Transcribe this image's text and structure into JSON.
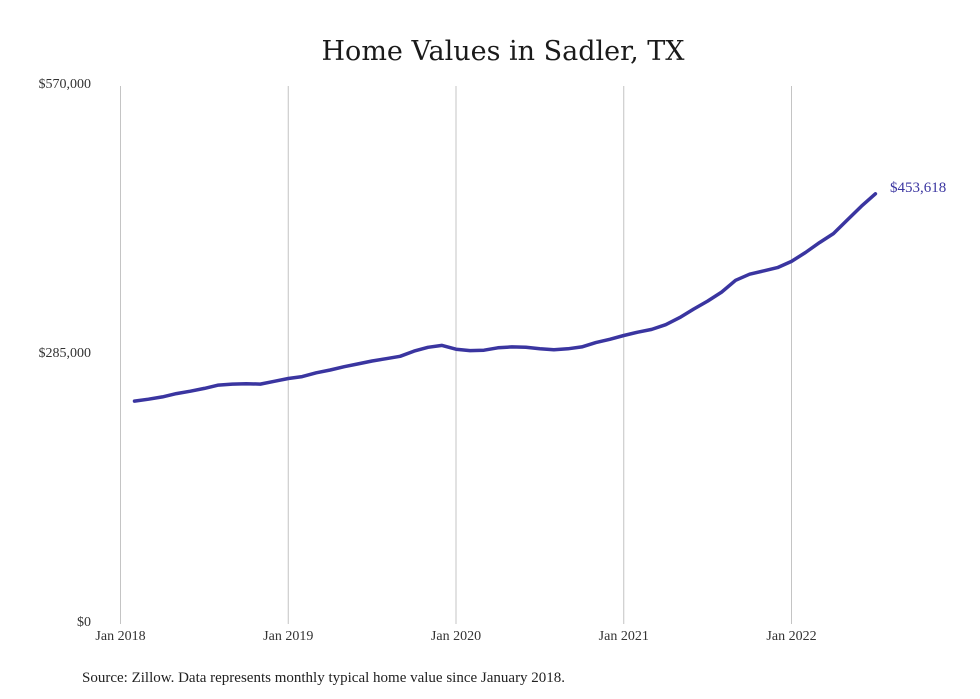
{
  "chart_data": {
    "type": "line",
    "title": "Home Values in Sadler, TX",
    "source_note": "Source: Zillow. Data represents monthly typical home value since January 2018.",
    "end_label": "$453,618",
    "ylim": [
      0,
      570000
    ],
    "y_ticks": [
      {
        "value": 0,
        "label": "$0"
      },
      {
        "value": 285000,
        "label": "$285,000"
      },
      {
        "value": 570000,
        "label": "$570,000"
      }
    ],
    "x_ticks": [
      "Jan 2018",
      "Jan 2019",
      "Jan 2020",
      "Jan 2021",
      "Jan 2022"
    ],
    "grid": "vertical",
    "line_color": "#3a35a0",
    "series": [
      {
        "x": [
          "2018-02",
          "2018-03",
          "2018-04",
          "2018-05",
          "2018-06",
          "2018-07",
          "2018-08",
          "2018-09",
          "2018-10",
          "2018-11",
          "2018-12",
          "2019-01",
          "2019-02",
          "2019-03",
          "2019-04",
          "2019-05",
          "2019-06",
          "2019-07",
          "2019-08",
          "2019-09",
          "2019-10",
          "2019-11",
          "2019-12",
          "2020-01",
          "2020-02",
          "2020-03",
          "2020-04",
          "2020-05",
          "2020-06",
          "2020-07",
          "2020-08",
          "2020-09",
          "2020-10",
          "2020-11",
          "2020-12",
          "2021-01",
          "2021-02",
          "2021-03",
          "2021-04",
          "2021-05",
          "2021-06",
          "2021-07",
          "2021-08",
          "2021-09",
          "2021-10",
          "2021-11",
          "2021-12",
          "2022-01",
          "2022-02",
          "2022-03",
          "2022-04",
          "2022-05",
          "2022-06",
          "2022-07"
        ],
        "values": [
          234000,
          236000,
          238500,
          242000,
          244500,
          247500,
          251000,
          252000,
          252500,
          252000,
          255000,
          258000,
          260000,
          264000,
          267000,
          270500,
          273500,
          276500,
          279000,
          281500,
          287000,
          291000,
          293000,
          289000,
          287500,
          288000,
          290500,
          291500,
          291000,
          289500,
          288500,
          289500,
          291500,
          296000,
          299500,
          303500,
          307000,
          310000,
          315000,
          322500,
          331500,
          340000,
          349500,
          362000,
          368500,
          372000,
          375500,
          382000,
          391500,
          402000,
          411500,
          426000,
          440500,
          453618
        ]
      }
    ]
  }
}
